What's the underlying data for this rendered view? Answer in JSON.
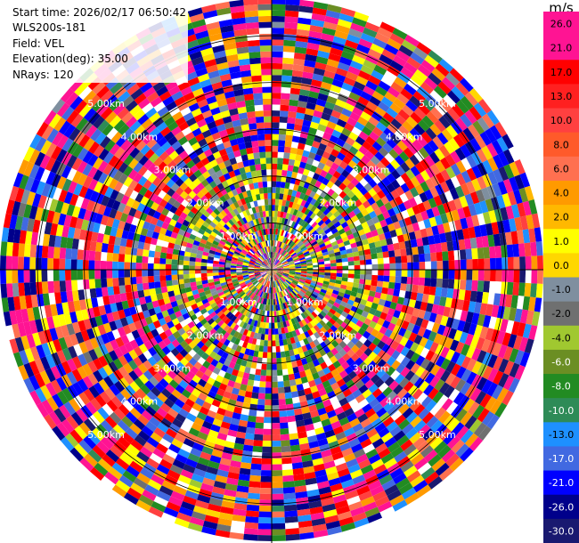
{
  "info": {
    "start_time": "Start time: 2026/02/17 06:50:42",
    "instrument": "WLS200s-181",
    "field": "Field: VEL",
    "elevation": "Elevation(deg): 35.00",
    "nrays": "NRays: 120"
  },
  "colorbar": {
    "unit": "m/s",
    "ticks": [
      "26.0",
      "21.0",
      "17.0",
      "13.0",
      "10.0",
      "8.0",
      "6.0",
      "4.0",
      "2.0",
      "1.0",
      "0.0",
      "-1.0",
      "-2.0",
      "-4.0",
      "-6.0",
      "-8.0",
      "-10.0",
      "-13.0",
      "-17.0",
      "-21.0",
      "-26.0",
      "-30.0"
    ],
    "colors": [
      "#ff1493",
      "#ff1493",
      "#ff0000",
      "#ff2020",
      "#ff4040",
      "#ff5a2a",
      "#ff7050",
      "#ff9a00",
      "#ffb800",
      "#ffff00",
      "#ffd700",
      "#7f8f9f",
      "#6f7070",
      "#a0c830",
      "#6b8e23",
      "#228b22",
      "#2e8b57",
      "#1e90ff",
      "#4169e1",
      "#0000ff",
      "#00008b",
      "#191970"
    ]
  },
  "chart_data": {
    "type": "heatmap",
    "projection": "polar PPI",
    "field": "VEL",
    "unit": "m/s",
    "elevation_deg": 35.0,
    "n_rays": 120,
    "range_rings_km": [
      1.0,
      2.0,
      3.0,
      4.0,
      5.0
    ],
    "ring_labels": [
      "1.00km",
      "2.00km",
      "3.00km",
      "4.00km",
      "5.00km"
    ],
    "max_range_km": 5.8,
    "value_range": [
      -30.0,
      26.0
    ],
    "colorbar_ticks": [
      26.0,
      21.0,
      17.0,
      13.0,
      10.0,
      8.0,
      6.0,
      4.0,
      2.0,
      1.0,
      0.0,
      -1.0,
      -2.0,
      -4.0,
      -6.0,
      -8.0,
      -10.0,
      -13.0,
      -17.0,
      -21.0,
      -26.0,
      -30.0
    ],
    "note_pattern": "noisy velocity field: yellow/green near center, mixed magenta/red/blue at longer range"
  }
}
